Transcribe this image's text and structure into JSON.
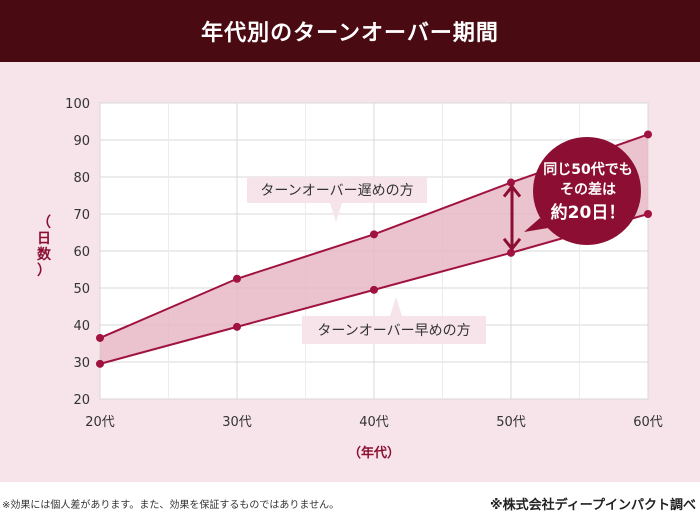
{
  "header": {
    "title": "年代別のターンオーバー期間"
  },
  "chart_data": {
    "type": "line",
    "title": "年代別のターンオーバー期間",
    "xlabel": "（年代）",
    "ylabel": "（日数）",
    "categories": [
      "20代",
      "30代",
      "40代",
      "50代",
      "60代"
    ],
    "ylim": [
      20,
      100
    ],
    "yticks": [
      20,
      30,
      40,
      50,
      60,
      70,
      80,
      90,
      100
    ],
    "grid": true,
    "series": [
      {
        "name": "ターンオーバー遅めの方",
        "values": [
          36.5,
          52.5,
          64.5,
          78.5,
          91.5
        ],
        "color": "#a0123f"
      },
      {
        "name": "ターンオーバー早めの方",
        "values": [
          29.5,
          39.5,
          49.5,
          59.5,
          70.0
        ],
        "color": "#a0123f"
      }
    ],
    "band_color": "#e6b8c6",
    "callout": {
      "lines": [
        "同じ50代でも",
        "その差は",
        "約20日！"
      ],
      "color": "#8c0f33"
    }
  },
  "footer": {
    "note": "※効果には個人差があります。また、効果を保証するものではありません。",
    "source": "※株式会社ディープインパクト調べ"
  }
}
